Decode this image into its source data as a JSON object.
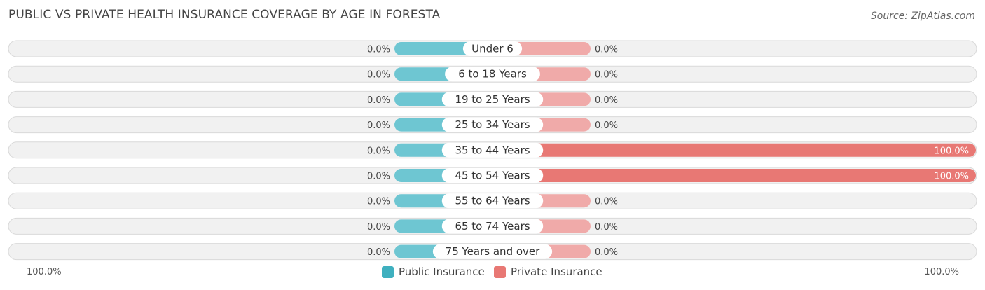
{
  "header": {
    "title": "PUBLIC VS PRIVATE HEALTH INSURANCE COVERAGE BY AGE IN FORESTA",
    "source": "Source: ZipAtlas.com"
  },
  "colors": {
    "public": "#6ec6d2",
    "public_legend": "#3fb0bf",
    "private_light": "#f0aaa9",
    "private_full": "#e87874",
    "row_bg": "#f1f1f1",
    "row_border": "#d9d9d9"
  },
  "axis": {
    "left_label": "100.0%",
    "right_label": "100.0%"
  },
  "legend": {
    "public": "Public Insurance",
    "private": "Private Insurance"
  },
  "chart_data": {
    "type": "bar",
    "orientation": "horizontal-diverging",
    "categories": [
      "Under 6",
      "6 to 18 Years",
      "19 to 25 Years",
      "25 to 34 Years",
      "35 to 44 Years",
      "45 to 54 Years",
      "55 to 64 Years",
      "65 to 74 Years",
      "75 Years and over"
    ],
    "series": [
      {
        "name": "Public Insurance",
        "values": [
          0,
          0,
          0,
          0,
          0,
          0,
          0,
          0,
          0
        ],
        "labels": [
          "0.0%",
          "0.0%",
          "0.0%",
          "0.0%",
          "0.0%",
          "0.0%",
          "0.0%",
          "0.0%",
          "0.0%"
        ]
      },
      {
        "name": "Private Insurance",
        "values": [
          0,
          0,
          0,
          0,
          100,
          100,
          0,
          0,
          0
        ],
        "labels": [
          "0.0%",
          "0.0%",
          "0.0%",
          "0.0%",
          "100.0%",
          "100.0%",
          "0.0%",
          "0.0%",
          "0.0%"
        ]
      }
    ],
    "xlim": [
      0,
      100
    ],
    "unit": "%"
  }
}
